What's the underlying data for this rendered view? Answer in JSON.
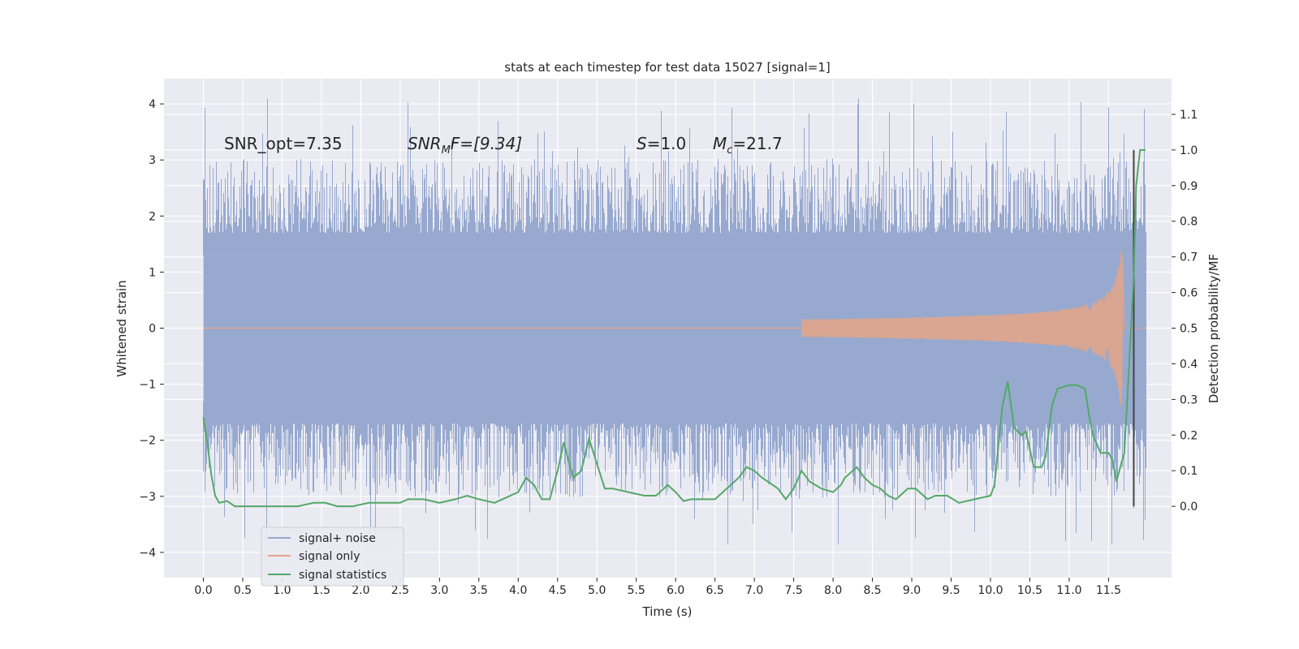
{
  "chart_data": {
    "type": "line",
    "title": "stats at each timestep for test data 15027 [signal=1]",
    "xlabel": "Time (s)",
    "ylabel_left": "Whitened strain",
    "ylabel_right": "Detection probability/MF",
    "xlim": [
      -0.5,
      12.3
    ],
    "ylim_left": [
      -4.45,
      4.45
    ],
    "ylim_right": [
      -0.2,
      1.2
    ],
    "x_ticks": [
      "0.0",
      "0.5",
      "1.0",
      "1.5",
      "2.0",
      "2.5",
      "3.0",
      "3.5",
      "4.0",
      "4.5",
      "5.0",
      "5.5",
      "6.0",
      "6.5",
      "7.0",
      "7.5",
      "8.0",
      "8.5",
      "9.0",
      "9.5",
      "10.0",
      "10.5",
      "11.0",
      "11.5"
    ],
    "y_ticks_left": [
      "4",
      "3",
      "2",
      "1",
      "0",
      "−1",
      "−2",
      "−3",
      "−4"
    ],
    "y_ticks_right": [
      "1.1",
      "1.0",
      "0.9",
      "0.8",
      "0.7",
      "0.6",
      "0.5",
      "0.4",
      "0.3",
      "0.2",
      "0.1",
      "0.0"
    ],
    "grid": true,
    "legend_position": "lower-left",
    "annotations": {
      "snr_opt": "SNR_opt=7.35",
      "snr_mf_base": "SNR",
      "snr_mf_sub": "M",
      "snr_mf_suffix": "F=[9.34]",
      "s_var": "S",
      "s_value": "=1.0",
      "mc_var": "M",
      "mc_sub": "c",
      "mc_value": "=21.7"
    },
    "series": [
      {
        "name": "signal+ noise",
        "color": "#97a9cf",
        "envelope_abs": 1.3,
        "peak_range": [
          1.7,
          4.1
        ],
        "t_range": [
          0.0,
          11.98
        ]
      },
      {
        "name": "signal only",
        "color": "#e1a58a",
        "t_coalescence": 11.68,
        "peak_amplitude": 1.38
      },
      {
        "name": "signal statistics",
        "color": "#54a868",
        "x": [
          0.0,
          0.05,
          0.1,
          0.15,
          0.2,
          0.3,
          0.4,
          0.5,
          0.6,
          0.8,
          1.0,
          1.2,
          1.4,
          1.55,
          1.7,
          1.9,
          2.1,
          2.3,
          2.5,
          2.6,
          2.8,
          3.0,
          3.2,
          3.35,
          3.5,
          3.7,
          4.0,
          4.1,
          4.2,
          4.3,
          4.4,
          4.5,
          4.58,
          4.65,
          4.7,
          4.8,
          4.9,
          5.0,
          5.1,
          5.2,
          5.4,
          5.6,
          5.75,
          5.9,
          6.0,
          6.1,
          6.2,
          6.3,
          6.5,
          6.8,
          6.9,
          7.0,
          7.1,
          7.3,
          7.4,
          7.5,
          7.6,
          7.7,
          7.85,
          8.0,
          8.1,
          8.15,
          8.3,
          8.4,
          8.5,
          8.6,
          8.7,
          8.8,
          8.95,
          9.05,
          9.2,
          9.3,
          9.45,
          9.6,
          9.8,
          10.0,
          10.05,
          10.15,
          10.22,
          10.3,
          10.4,
          10.45,
          10.55,
          10.65,
          10.7,
          10.78,
          10.85,
          11.0,
          11.1,
          11.2,
          11.25,
          11.3,
          11.4,
          11.5,
          11.55,
          11.6,
          11.7,
          11.75,
          11.82,
          11.85,
          11.9,
          11.97
        ],
        "values": [
          0.25,
          0.18,
          0.09,
          0.03,
          0.01,
          0.015,
          0.0,
          0.0,
          0.0,
          0.0,
          0.0,
          0.0,
          0.01,
          0.01,
          0.0,
          0.0,
          0.01,
          0.01,
          0.01,
          0.02,
          0.02,
          0.01,
          0.02,
          0.03,
          0.02,
          0.01,
          0.04,
          0.08,
          0.06,
          0.02,
          0.02,
          0.1,
          0.18,
          0.12,
          0.08,
          0.1,
          0.19,
          0.12,
          0.05,
          0.05,
          0.04,
          0.03,
          0.03,
          0.06,
          0.04,
          0.015,
          0.02,
          0.02,
          0.02,
          0.08,
          0.11,
          0.1,
          0.08,
          0.05,
          0.02,
          0.05,
          0.1,
          0.07,
          0.05,
          0.04,
          0.06,
          0.08,
          0.11,
          0.08,
          0.06,
          0.05,
          0.03,
          0.02,
          0.05,
          0.05,
          0.02,
          0.03,
          0.03,
          0.01,
          0.02,
          0.03,
          0.06,
          0.28,
          0.35,
          0.22,
          0.2,
          0.21,
          0.11,
          0.11,
          0.14,
          0.28,
          0.33,
          0.34,
          0.34,
          0.33,
          0.26,
          0.2,
          0.15,
          0.15,
          0.13,
          0.07,
          0.15,
          0.35,
          0.65,
          0.9,
          1.0,
          1.0
        ]
      }
    ],
    "vertical_marker_x": 11.82
  }
}
